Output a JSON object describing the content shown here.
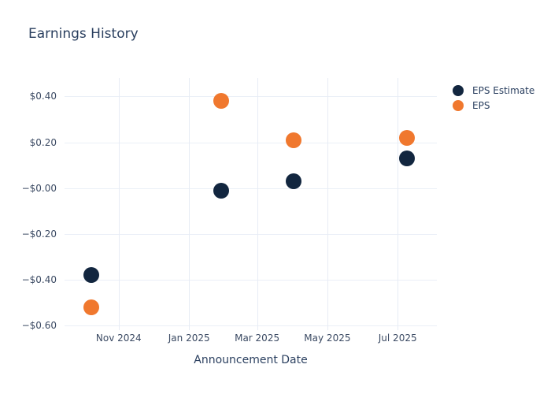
{
  "title": "Earnings History",
  "chart_data": {
    "type": "scatter",
    "title": "Earnings History",
    "xlabel": "Announcement Date",
    "ylabel": "",
    "grid": true,
    "legend_position": "right",
    "x_range": [
      "2024-09-15",
      "2025-08-04"
    ],
    "y_range": [
      -0.62,
      0.48
    ],
    "x_ticks": [
      {
        "date": "2024-11-01",
        "label": "Nov 2024"
      },
      {
        "date": "2025-01-01",
        "label": "Jan 2025"
      },
      {
        "date": "2025-03-01",
        "label": "Mar 2025"
      },
      {
        "date": "2025-05-01",
        "label": "May 2025"
      },
      {
        "date": "2025-07-01",
        "label": "Jul 2025"
      }
    ],
    "y_ticks": [
      {
        "value": 0.4,
        "label": "$0.40"
      },
      {
        "value": 0.2,
        "label": "$0.20"
      },
      {
        "value": 0.0,
        "label": "−$0.00"
      },
      {
        "value": -0.2,
        "label": "−$0.20"
      },
      {
        "value": -0.4,
        "label": "−$0.40"
      },
      {
        "value": -0.6,
        "label": "−$0.60"
      }
    ],
    "series": [
      {
        "name": "EPS Estimate",
        "color": "#12263F",
        "points": [
          {
            "date": "2024-10-08",
            "value": -0.38
          },
          {
            "date": "2025-01-29",
            "value": -0.01
          },
          {
            "date": "2025-04-02",
            "value": 0.03
          },
          {
            "date": "2025-07-09",
            "value": 0.13
          }
        ]
      },
      {
        "name": "EPS",
        "color": "#F0782E",
        "points": [
          {
            "date": "2024-10-08",
            "value": -0.52
          },
          {
            "date": "2025-01-29",
            "value": 0.38
          },
          {
            "date": "2025-04-02",
            "value": 0.21
          },
          {
            "date": "2025-07-09",
            "value": 0.22
          }
        ]
      }
    ]
  },
  "colors": {
    "title_text": "#2A3F5F",
    "tick_text": "#3B4A63",
    "gridline": "#E9EEF6",
    "background": "#FFFFFF"
  }
}
